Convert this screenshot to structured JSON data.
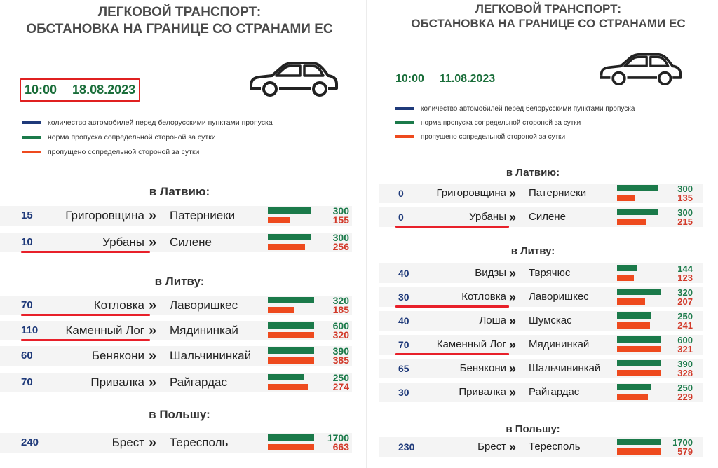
{
  "colors": {
    "cars_before_checkpoint": "#1f3a7a",
    "norm": "#1b7a4a",
    "passed": "#ee4a1e",
    "highlight": "#e8202a"
  },
  "icons": {
    "car": "car-icon"
  },
  "chart_data": [
    {
      "type": "bar",
      "title": "ЛЕГКОВОЙ ТРАНСПОРТ:",
      "subtitle": "ОБСТАНОВКА НА ГРАНИЦЕ СО СТРАНАМИ ЕС",
      "time": "10:00",
      "date": "18.08.2023",
      "legend": [
        {
          "label": "количество автомобилей перед белорусскими пунктами пропуска",
          "color": "#1f3a7a"
        },
        {
          "label": "норма пропуска сопредельной стороной за сутки",
          "color": "#1b7a4a"
        },
        {
          "label": "пропущено сопредельной стороной за сутки",
          "color": "#ee4a1e"
        }
      ],
      "sections": [
        {
          "title": "в Латвию:",
          "rows": [
            {
              "count": "15",
              "from": "Григоровщина",
              "to": "Патерниеки",
              "norm": 300,
              "passed": 155,
              "highlight": false
            },
            {
              "count": "10",
              "from": "Урбаны",
              "to": "Силене",
              "norm": 300,
              "passed": 256,
              "highlight": true
            }
          ]
        },
        {
          "title": "в Литву:",
          "rows": [
            {
              "count": "70",
              "from": "Котловка",
              "to": "Лаворишкес",
              "norm": 320,
              "passed": 185,
              "highlight": true
            },
            {
              "count": "110",
              "from": "Каменный Лог",
              "to": "Мядининкай",
              "norm": 600,
              "passed": 320,
              "highlight": true
            },
            {
              "count": "60",
              "from": "Бенякони",
              "to": "Шальчининкай",
              "norm": 390,
              "passed": 385,
              "highlight": false
            },
            {
              "count": "70",
              "from": "Привалка",
              "to": "Райгардас",
              "norm": 250,
              "passed": 274,
              "highlight": false
            }
          ]
        },
        {
          "title": "в Польшу:",
          "rows": [
            {
              "count": "240",
              "from": "Брест",
              "to": "Тересполь",
              "norm": 1700,
              "passed": 663,
              "highlight": false
            }
          ]
        }
      ]
    },
    {
      "type": "bar",
      "title": "ЛЕГКОВОЙ ТРАНСПОРТ:",
      "subtitle": "ОБСТАНОВКА НА ГРАНИЦЕ СО СТРАНАМИ ЕС",
      "time": "10:00",
      "date": "11.08.2023",
      "legend": [
        {
          "label": "количество автомобилей перед белорусскими пунктами пропуска",
          "color": "#1f3a7a"
        },
        {
          "label": "норма пропуска сопредельной стороной за сутки",
          "color": "#1b7a4a"
        },
        {
          "label": "пропущено сопредельной стороной за сутки",
          "color": "#ee4a1e"
        }
      ],
      "sections": [
        {
          "title": "в Латвию:",
          "rows": [
            {
              "count": "0",
              "from": "Григоровщина",
              "to": "Патерниеки",
              "norm": 300,
              "passed": 135,
              "highlight": false
            },
            {
              "count": "0",
              "from": "Урбаны",
              "to": "Силене",
              "norm": 300,
              "passed": 215,
              "highlight": true
            }
          ]
        },
        {
          "title": "в Литву:",
          "rows": [
            {
              "count": "40",
              "from": "Видзы",
              "to": "Тврячюс",
              "norm": 144,
              "passed": 123,
              "highlight": false
            },
            {
              "count": "30",
              "from": "Котловка",
              "to": "Лаворишкес",
              "norm": 320,
              "passed": 207,
              "highlight": true
            },
            {
              "count": "40",
              "from": "Лоша",
              "to": "Шумскас",
              "norm": 250,
              "passed": 241,
              "highlight": false
            },
            {
              "count": "70",
              "from": "Каменный Лог",
              "to": "Мядининкай",
              "norm": 600,
              "passed": 321,
              "highlight": true
            },
            {
              "count": "65",
              "from": "Бенякони",
              "to": "Шальчининкай",
              "norm": 390,
              "passed": 328,
              "highlight": false
            },
            {
              "count": "30",
              "from": "Привалка",
              "to": "Райгардас",
              "norm": 250,
              "passed": 229,
              "highlight": false
            }
          ]
        },
        {
          "title": "в Польшу:",
          "rows": [
            {
              "count": "230",
              "from": "Брест",
              "to": "Тересполь",
              "norm": 1700,
              "passed": 579,
              "highlight": false
            }
          ]
        }
      ]
    }
  ]
}
